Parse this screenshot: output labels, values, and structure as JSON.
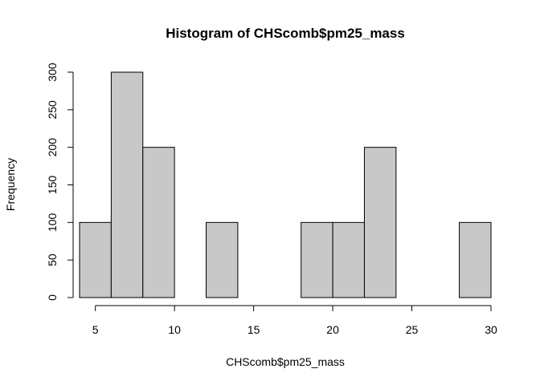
{
  "chart_data": {
    "type": "bar",
    "title": "Histogram of CHScomb$pm25_mass",
    "xlabel": "CHScomb$pm25_mass",
    "ylabel": "Frequency",
    "bins": [
      {
        "start": 4,
        "end": 6,
        "count": 100
      },
      {
        "start": 6,
        "end": 8,
        "count": 300
      },
      {
        "start": 8,
        "end": 10,
        "count": 200
      },
      {
        "start": 10,
        "end": 12,
        "count": 0
      },
      {
        "start": 12,
        "end": 14,
        "count": 100
      },
      {
        "start": 14,
        "end": 16,
        "count": 0
      },
      {
        "start": 16,
        "end": 18,
        "count": 0
      },
      {
        "start": 18,
        "end": 20,
        "count": 100
      },
      {
        "start": 20,
        "end": 22,
        "count": 100
      },
      {
        "start": 22,
        "end": 24,
        "count": 200
      },
      {
        "start": 24,
        "end": 26,
        "count": 0
      },
      {
        "start": 26,
        "end": 28,
        "count": 0
      },
      {
        "start": 28,
        "end": 30,
        "count": 100
      }
    ],
    "xticks": [
      5,
      10,
      15,
      20,
      25,
      30
    ],
    "yticks": [
      0,
      50,
      100,
      150,
      200,
      250,
      300
    ],
    "xlim": [
      4,
      30
    ],
    "ylim": [
      0,
      300
    ],
    "bar_color": "#c8c8c8",
    "grid": false,
    "legend": "none"
  }
}
